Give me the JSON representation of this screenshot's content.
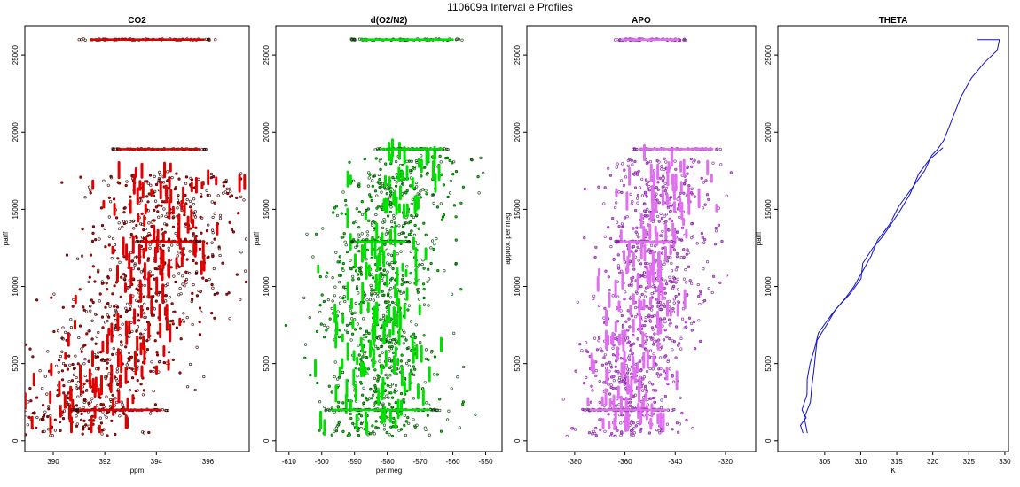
{
  "figure_title": "110609a   Interval e Profiles",
  "colors": {
    "co2": "#e00000",
    "co2_edge": "#3a0000",
    "o2": "#00e000",
    "o2_edge": "#004400",
    "apo": "#e070f0",
    "apo_edge": "#8020a0",
    "theta": "#1010d0"
  },
  "chart_data": [
    {
      "id": "co2",
      "type": "scatter",
      "title": "CO2",
      "xlabel": "ppm",
      "ylabel": "patff",
      "xlim": [
        388.9,
        397.6
      ],
      "ylim": [
        -700,
        26900
      ],
      "xticks": [
        390,
        392,
        394,
        396
      ],
      "yticks": [
        0,
        5000,
        10000,
        15000,
        20000,
        25000
      ],
      "dense_bands": [
        {
          "y": 26000,
          "x": [
            391.0,
            396.3
          ]
        },
        {
          "y": 18900,
          "x": [
            392.2,
            396.0
          ]
        },
        {
          "y": 12900,
          "x": [
            393.2,
            395.7
          ]
        },
        {
          "y": 2000,
          "x": [
            390.7,
            394.5
          ]
        }
      ],
      "profile": [
        [
          390.5,
          500
        ],
        [
          390.9,
          2000
        ],
        [
          391.6,
          3500
        ],
        [
          392.3,
          5200
        ],
        [
          392.6,
          6500
        ],
        [
          393.2,
          8500
        ],
        [
          393.9,
          10000
        ],
        [
          394.2,
          12000
        ],
        [
          394.3,
          14000
        ],
        [
          394.6,
          16000
        ],
        [
          394.4,
          17500
        ]
      ],
      "spread": 1.5
    },
    {
      "id": "o2",
      "type": "scatter",
      "title": "d(O2/N2)",
      "xlabel": "per meg",
      "ylabel": "patff",
      "xlim": [
        -614,
        -545
      ],
      "ylim": [
        -700,
        26900
      ],
      "xticks": [
        -610,
        -600,
        -590,
        -580,
        -570,
        -560,
        -550
      ],
      "yticks": [
        0,
        5000,
        10000,
        15000,
        20000,
        25000
      ],
      "dense_bands": [
        {
          "y": 26000,
          "x": [
            -591,
            -557
          ]
        },
        {
          "y": 18900,
          "x": [
            -584,
            -561
          ]
        },
        {
          "y": 12900,
          "x": [
            -591,
            -573
          ]
        },
        {
          "y": 2000,
          "x": [
            -600,
            -564
          ]
        }
      ],
      "profile": [
        [
          -585,
          500
        ],
        [
          -583,
          2500
        ],
        [
          -581,
          5000
        ],
        [
          -583,
          8000
        ],
        [
          -582,
          10500
        ],
        [
          -581,
          13000
        ],
        [
          -579,
          15500
        ],
        [
          -574,
          17500
        ],
        [
          -571,
          18500
        ]
      ],
      "spread": 9
    },
    {
      "id": "apo",
      "type": "scatter",
      "title": "APO",
      "xlabel": "",
      "ylabel": "approx. per meg",
      "xlim": [
        -399,
        -308
      ],
      "ylim": [
        -700,
        26900
      ],
      "xticks": [
        -380,
        -360,
        -340,
        -320
      ],
      "yticks": [
        0,
        5000,
        10000,
        15000,
        20000,
        25000
      ],
      "dense_bands": [
        {
          "y": 26000,
          "x": [
            -364,
            -336
          ]
        },
        {
          "y": 18900,
          "x": [
            -357,
            -322
          ]
        },
        {
          "y": 12900,
          "x": [
            -364,
            -340
          ]
        },
        {
          "y": 2000,
          "x": [
            -377,
            -340
          ]
        }
      ],
      "profile": [
        [
          -358,
          500
        ],
        [
          -358,
          3000
        ],
        [
          -356,
          6000
        ],
        [
          -351,
          9000
        ],
        [
          -349,
          11500
        ],
        [
          -346,
          14000
        ],
        [
          -345,
          16500
        ],
        [
          -345,
          18300
        ]
      ],
      "spread": 10
    },
    {
      "id": "theta",
      "type": "line",
      "title": "THETA",
      "xlabel": "K",
      "ylabel": "patff",
      "xlim": [
        298.5,
        330.5
      ],
      "ylim": [
        -700,
        26900
      ],
      "xticks": [
        305,
        310,
        315,
        320,
        325,
        330
      ],
      "yticks": [
        0,
        5000,
        10000,
        15000,
        20000,
        25000
      ],
      "series": [
        {
          "points": [
            [
              302.0,
              500
            ],
            [
              301.8,
              1000
            ],
            [
              302.4,
              1500
            ],
            [
              301.7,
              2000
            ],
            [
              302.3,
              3000
            ],
            [
              302.6,
              4000
            ],
            [
              303.0,
              5000
            ],
            [
              303.8,
              6000
            ],
            [
              304.4,
              7000
            ],
            [
              306.0,
              8200
            ],
            [
              307.6,
              9200
            ],
            [
              309.3,
              10000
            ],
            [
              310.0,
              11000
            ],
            [
              311.3,
              12000
            ],
            [
              312.5,
              13000
            ],
            [
              314.0,
              14000
            ],
            [
              315.5,
              15200
            ],
            [
              317.5,
              16500
            ],
            [
              318.6,
              17500
            ],
            [
              320.0,
              18500
            ],
            [
              320.8,
              18900
            ],
            [
              321.4,
              19500
            ],
            [
              322.6,
              21000
            ],
            [
              324.2,
              22300
            ],
            [
              325.4,
              23500
            ],
            [
              327.4,
              24500
            ],
            [
              328.8,
              25300
            ],
            [
              329.5,
              26000
            ],
            [
              326.2,
              26000
            ]
          ]
        },
        {
          "points": [
            [
              302.6,
              500
            ],
            [
              302.2,
              1500
            ],
            [
              302.8,
              2500
            ],
            [
              303.0,
              3500
            ],
            [
              303.4,
              4500
            ],
            [
              304.2,
              6500
            ],
            [
              305.1,
              7500
            ],
            [
              306.5,
              8500
            ],
            [
              308.4,
              9500
            ],
            [
              309.8,
              10500
            ],
            [
              310.4,
              11500
            ],
            [
              311.6,
              12500
            ],
            [
              313.1,
              13200
            ],
            [
              315.2,
              14800
            ],
            [
              316.8,
              16000
            ],
            [
              318.2,
              17300
            ],
            [
              319.5,
              18200
            ],
            [
              321.4,
              19000
            ]
          ]
        }
      ]
    }
  ]
}
